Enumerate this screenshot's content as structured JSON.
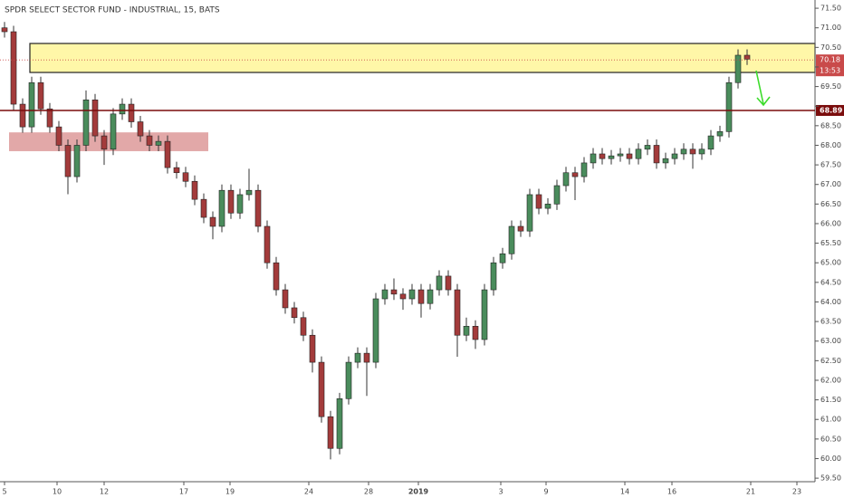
{
  "chart_data": {
    "type": "candlestick",
    "title": "SPDR SELECT SECTOR FUND - INDUSTRIAL, 15, BATS",
    "up_color": "#4a8c5c",
    "down_color": "#a33b3b",
    "open": [
      71.0,
      70.9,
      69.05,
      68.47,
      69.6,
      68.93,
      68.47,
      68.0,
      67.2,
      68.0,
      69.16,
      68.24,
      67.9,
      68.8,
      69.05,
      68.6,
      68.24,
      68.0,
      68.1,
      67.43,
      67.3,
      67.08,
      66.62,
      66.16,
      65.93,
      66.85,
      66.27,
      66.74,
      66.85,
      65.93,
      65.0,
      64.31,
      63.85,
      63.6,
      63.15,
      62.46,
      61.07,
      60.26,
      61.53,
      62.46,
      62.69,
      62.46,
      64.08,
      64.31,
      64.2,
      64.08,
      64.31,
      63.96,
      64.31,
      64.66,
      64.31,
      63.15,
      63.38,
      63.04,
      64.31,
      65.0,
      65.23,
      65.93,
      65.81,
      66.74,
      66.39,
      66.5,
      66.97,
      67.3,
      67.2,
      67.55,
      67.78,
      67.66,
      67.73,
      67.78,
      67.66,
      67.9,
      68.0,
      67.55,
      67.66,
      67.78,
      67.9,
      67.78,
      67.9,
      68.24,
      68.35,
      69.6,
      70.3
    ],
    "high": [
      71.15,
      71.05,
      69.2,
      69.75,
      69.75,
      69.08,
      68.62,
      68.15,
      68.15,
      69.4,
      69.31,
      68.39,
      68.95,
      69.2,
      69.2,
      68.75,
      68.39,
      68.25,
      68.25,
      67.58,
      67.45,
      67.23,
      66.77,
      66.31,
      67.0,
      67.0,
      66.89,
      67.4,
      67.0,
      66.08,
      65.15,
      64.46,
      64.0,
      63.75,
      63.3,
      62.61,
      61.22,
      61.68,
      62.61,
      62.84,
      62.84,
      64.23,
      64.46,
      64.6,
      64.35,
      64.46,
      64.46,
      64.46,
      64.81,
      64.81,
      64.46,
      63.6,
      63.53,
      64.46,
      65.15,
      65.38,
      66.08,
      66.08,
      66.89,
      66.89,
      66.65,
      67.12,
      67.45,
      67.45,
      67.7,
      67.93,
      67.93,
      67.88,
      67.93,
      67.93,
      68.05,
      68.15,
      68.15,
      67.81,
      67.93,
      68.05,
      68.05,
      68.05,
      68.39,
      68.5,
      69.75,
      70.45,
      70.45
    ],
    "low": [
      70.75,
      68.9,
      68.32,
      68.32,
      68.78,
      68.32,
      67.85,
      66.75,
      67.05,
      67.85,
      68.09,
      67.5,
      67.75,
      68.65,
      68.45,
      68.09,
      67.85,
      67.85,
      67.28,
      67.15,
      66.93,
      66.47,
      66.01,
      65.6,
      65.78,
      66.12,
      66.12,
      66.59,
      65.78,
      64.85,
      64.16,
      63.7,
      63.45,
      63.0,
      62.2,
      60.92,
      59.98,
      60.11,
      61.38,
      62.31,
      61.6,
      62.31,
      63.93,
      64.05,
      63.8,
      63.93,
      63.6,
      63.81,
      64.16,
      64.16,
      62.6,
      63.0,
      62.8,
      62.89,
      64.16,
      64.85,
      65.08,
      65.66,
      65.66,
      66.24,
      66.24,
      66.35,
      66.82,
      66.6,
      67.05,
      67.4,
      67.51,
      67.51,
      67.58,
      67.51,
      67.51,
      67.75,
      67.4,
      67.4,
      67.51,
      67.63,
      67.4,
      67.63,
      67.75,
      68.09,
      68.2,
      69.45,
      70.05
    ],
    "close": [
      70.9,
      69.05,
      68.47,
      69.6,
      68.93,
      68.47,
      68.0,
      67.2,
      68.0,
      69.16,
      68.24,
      67.9,
      68.8,
      69.05,
      68.6,
      68.24,
      68.0,
      68.1,
      67.43,
      67.3,
      67.08,
      66.62,
      66.16,
      65.93,
      66.85,
      66.27,
      66.74,
      66.85,
      65.93,
      65.0,
      64.31,
      63.85,
      63.6,
      63.15,
      62.46,
      61.07,
      60.26,
      61.53,
      62.46,
      62.69,
      62.46,
      64.08,
      64.31,
      64.2,
      64.08,
      64.31,
      63.96,
      64.31,
      64.66,
      64.31,
      63.15,
      63.38,
      63.04,
      64.31,
      65.0,
      65.23,
      65.93,
      65.81,
      66.74,
      66.39,
      66.5,
      66.97,
      67.3,
      67.2,
      67.55,
      67.78,
      67.66,
      67.73,
      67.78,
      67.66,
      67.9,
      68.0,
      67.55,
      67.66,
      67.78,
      67.9,
      67.78,
      67.9,
      68.24,
      68.35,
      69.6,
      70.3,
      70.2
    ],
    "xlim": [
      0,
      90
    ],
    "xticks": [
      {
        "value": 0.5,
        "label": "5"
      },
      {
        "value": 6.3,
        "label": "10"
      },
      {
        "value": 11.5,
        "label": "12"
      },
      {
        "value": 20.3,
        "label": "17"
      },
      {
        "value": 25.4,
        "label": "19"
      },
      {
        "value": 34.1,
        "label": "24"
      },
      {
        "value": 40.7,
        "label": "28"
      },
      {
        "value": 46.2,
        "label": "2019"
      },
      {
        "value": 55.3,
        "label": "3"
      },
      {
        "value": 60.3,
        "label": "9"
      },
      {
        "value": 69.0,
        "label": "14"
      },
      {
        "value": 74.2,
        "label": "16"
      },
      {
        "value": 82.9,
        "label": "21"
      },
      {
        "value": 88.0,
        "label": "23"
      }
    ],
    "ylim": [
      59.41,
      71.71
    ],
    "yticks": [
      {
        "value": 59.5,
        "label": "59.50"
      },
      {
        "value": 60,
        "label": "60.00"
      },
      {
        "value": 60.5,
        "label": "60.50"
      },
      {
        "value": 61,
        "label": "61.00"
      },
      {
        "value": 61.5,
        "label": "61.50"
      },
      {
        "value": 62,
        "label": "62.00"
      },
      {
        "value": 62.5,
        "label": "62.50"
      },
      {
        "value": 63,
        "label": "63.00"
      },
      {
        "value": 63.5,
        "label": "63.50"
      },
      {
        "value": 64,
        "label": "64.00"
      },
      {
        "value": 64.5,
        "label": "64.50"
      },
      {
        "value": 65,
        "label": "65.00"
      },
      {
        "value": 65.5,
        "label": "65.50"
      },
      {
        "value": 66,
        "label": "66.00"
      },
      {
        "value": 66.5,
        "label": "66.50"
      },
      {
        "value": 67,
        "label": "67.00"
      },
      {
        "value": 67.5,
        "label": "67.50"
      },
      {
        "value": 68,
        "label": "68.00"
      },
      {
        "value": 68.5,
        "label": "68.50"
      },
      {
        "value": 69,
        "label": "69.00"
      },
      {
        "value": 69.5,
        "label": "69.50"
      },
      {
        "value": 70,
        "label": "70.00"
      },
      {
        "value": 70.5,
        "label": "70.50"
      },
      {
        "value": 71,
        "label": "71.00"
      },
      {
        "value": 71.5,
        "label": "71.50"
      }
    ],
    "zones": [
      {
        "low": 69.86,
        "high": 70.6,
        "x0": 3.3,
        "x1": 90,
        "color": "#fff7a8"
      },
      {
        "low": 67.85,
        "high": 68.33,
        "x0": 1,
        "x1": 23,
        "color": "#e2a8a8"
      }
    ],
    "level": 68.89,
    "level_color": "#7a0c0c",
    "last_price": 70.18,
    "countdown": "13:53",
    "last_color": "#c94a4a"
  }
}
